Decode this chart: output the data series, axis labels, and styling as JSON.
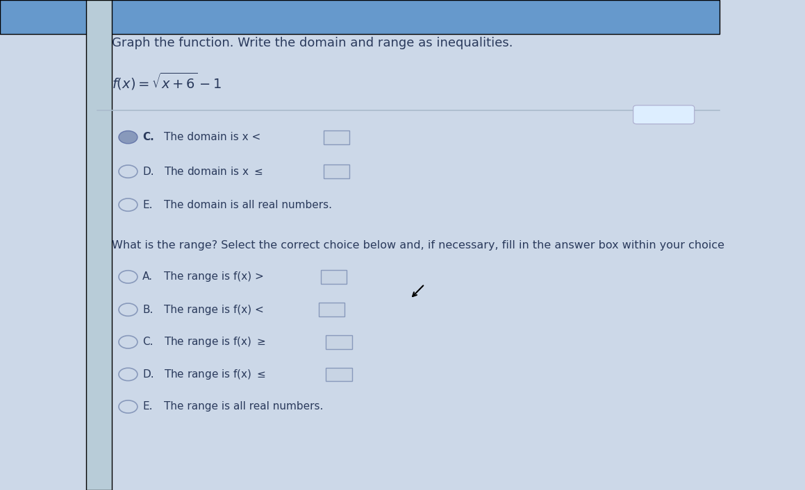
{
  "title": "Graph the function. Write the domain and range as inequalities.",
  "function_label": "f(x) = sqrt(x+6) - 1",
  "background_top": "#6699cc",
  "background_main": "#ccd8e8",
  "text_color": "#2a3a5c",
  "range_question": "What is the range? Select the correct choice below and, if necessary, fill in the answer box within your choice",
  "separator_color": "#aabbcc",
  "dots_button_color": "#ddeeff",
  "fs_title": 13,
  "fs_func": 13,
  "fs_body": 11.5,
  "fs_option": 11
}
